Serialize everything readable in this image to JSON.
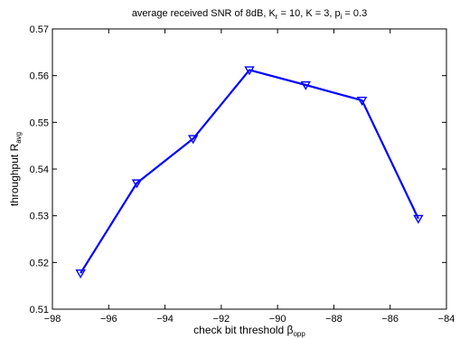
{
  "chart_data": {
    "type": "line",
    "title": {
      "parts": [
        {
          "text": "average received SNR of 8dB, K"
        },
        {
          "text": "r",
          "sub": true
        },
        {
          "text": " = 10, K = 3, p"
        },
        {
          "text": "i",
          "sub": true
        },
        {
          "text": " = 0.3"
        }
      ]
    },
    "xlabel": {
      "parts": [
        {
          "text": "check bit threshold β"
        },
        {
          "text": "opp",
          "sub": true
        }
      ]
    },
    "ylabel": {
      "parts": [
        {
          "text": "throughput R"
        },
        {
          "text": "avg",
          "sub": true
        }
      ]
    },
    "xlim": [
      -98,
      -84
    ],
    "ylim": [
      0.51,
      0.57
    ],
    "xticks": [
      -98,
      -96,
      -94,
      -92,
      -90,
      -88,
      -86,
      -84
    ],
    "yticks": [
      0.51,
      0.52,
      0.53,
      0.54,
      0.55,
      0.56,
      0.57
    ],
    "grid": false,
    "legend": "none",
    "series": [
      {
        "x": [
          -97,
          -95,
          -93,
          -91,
          -89,
          -87,
          -85
        ],
        "y": [
          0.5177,
          0.537,
          0.5465,
          0.5612,
          0.558,
          0.5547,
          0.5294
        ],
        "color": "#0000ff",
        "marker": "down-triangle"
      }
    ]
  }
}
